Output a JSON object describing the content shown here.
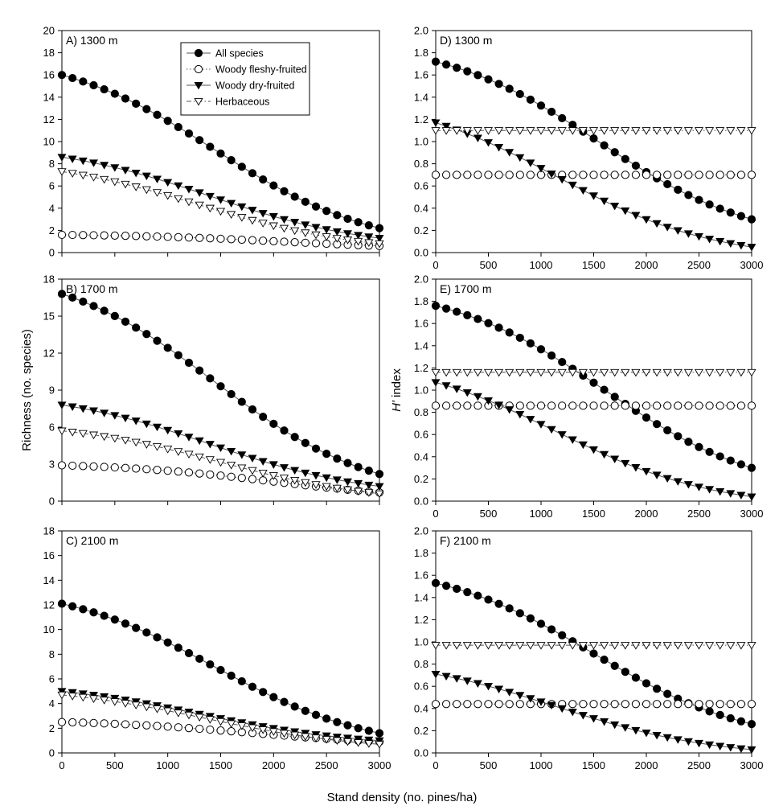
{
  "figure": {
    "ylabel_left": "Richness (no. species)",
    "ylabel_right_italic": "H'",
    "ylabel_right_rest": " index",
    "xlabel": "Stand density (no. pines/ha)"
  },
  "colors": {
    "ink": "#000000",
    "line": "#555555",
    "hollow": "#ffffff"
  },
  "chart_data": [
    {
      "id": "A",
      "type": "line",
      "label": "A) 1300 m",
      "metric": "Richness (no. species)",
      "ylim": [
        0,
        20
      ],
      "yticks": [
        0,
        2,
        4,
        6,
        8,
        10,
        12,
        14,
        16,
        18,
        20
      ],
      "xlim": [
        0,
        3000
      ],
      "xticks": [
        0,
        500,
        1000,
        1500,
        2000,
        2500,
        3000
      ],
      "xticklabels": false,
      "legend": true,
      "legend_position": "top-right",
      "series": [
        {
          "name": "All species",
          "marker": "circle-filled",
          "dash": "solid",
          "start": 16.0,
          "end": 2.2,
          "mid": 1450,
          "k": 1.0
        },
        {
          "name": "Woody fleshy-fruited",
          "marker": "circle-open",
          "dash": "dotted",
          "start": 1.6,
          "end": 0.6,
          "mid": 2100,
          "k": 1.0
        },
        {
          "name": "Woody dry-fruited",
          "marker": "triangle-filled",
          "dash": "solid",
          "start": 8.6,
          "end": 1.3,
          "mid": 1400,
          "k": 1.0
        },
        {
          "name": "Herbaceous",
          "marker": "triangle-open",
          "dash": "dashdot",
          "start": 7.3,
          "end": 0.8,
          "mid": 1300,
          "k": 1.0
        }
      ]
    },
    {
      "id": "B",
      "type": "line",
      "label": "B) 1700 m",
      "metric": "Richness (no. species)",
      "ylim": [
        0,
        18
      ],
      "yticks": [
        0,
        3,
        6,
        9,
        12,
        15,
        18
      ],
      "xlim": [
        0,
        3000
      ],
      "xticks": [
        0,
        500,
        1000,
        1500,
        2000,
        2500,
        3000
      ],
      "xticklabels": false,
      "legend": false,
      "series": [
        {
          "name": "All species",
          "marker": "circle-filled",
          "dash": "solid",
          "start": 16.8,
          "end": 2.2,
          "mid": 1450,
          "k": 1.0
        },
        {
          "name": "Woody fleshy-fruited",
          "marker": "circle-open",
          "dash": "dotted",
          "start": 2.9,
          "end": 0.7,
          "mid": 2000,
          "k": 1.0
        },
        {
          "name": "Woody dry-fruited",
          "marker": "triangle-filled",
          "dash": "solid",
          "start": 7.8,
          "end": 1.2,
          "mid": 1400,
          "k": 1.0
        },
        {
          "name": "Herbaceous",
          "marker": "triangle-open",
          "dash": "dashdot",
          "start": 5.7,
          "end": 0.6,
          "mid": 1500,
          "k": 1.0
        }
      ]
    },
    {
      "id": "C",
      "type": "line",
      "label": "C) 2100 m",
      "metric": "Richness (no. species)",
      "ylim": [
        0,
        18
      ],
      "yticks": [
        0,
        2,
        4,
        6,
        8,
        10,
        12,
        14,
        16,
        18
      ],
      "xlim": [
        0,
        3000
      ],
      "xticks": [
        0,
        500,
        1000,
        1500,
        2000,
        2500,
        3000
      ],
      "xticklabels": true,
      "legend": false,
      "series": [
        {
          "name": "All species",
          "marker": "circle-filled",
          "dash": "solid",
          "start": 12.1,
          "end": 1.6,
          "mid": 1450,
          "k": 1.0
        },
        {
          "name": "Woody fleshy-fruited",
          "marker": "circle-open",
          "dash": "dotted",
          "start": 2.5,
          "end": 0.9,
          "mid": 1800,
          "k": 1.0
        },
        {
          "name": "Woody dry-fruited",
          "marker": "triangle-filled",
          "dash": "solid",
          "start": 5.0,
          "end": 1.0,
          "mid": 1300,
          "k": 1.0
        },
        {
          "name": "Herbaceous",
          "marker": "triangle-open",
          "dash": "dashdot",
          "start": 4.7,
          "end": 0.7,
          "mid": 1350,
          "k": 1.0
        }
      ]
    },
    {
      "id": "D",
      "type": "line",
      "label": "D) 1300 m",
      "metric": "H' index",
      "ylim": [
        0,
        2.0
      ],
      "yticks": [
        0.0,
        0.2,
        0.4,
        0.6,
        0.8,
        1.0,
        1.2,
        1.4,
        1.6,
        1.8,
        2.0
      ],
      "xlim": [
        0,
        3000
      ],
      "xticks": [
        0,
        500,
        1000,
        1500,
        2000,
        2500,
        3000
      ],
      "xticklabels": true,
      "legend": false,
      "series": [
        {
          "name": "All species",
          "marker": "circle-filled",
          "dash": "solid",
          "start": 1.72,
          "end": 0.3,
          "mid": 1550,
          "k": 1.0
        },
        {
          "name": "Woody fleshy-fruited",
          "marker": "circle-open",
          "dash": "dotted",
          "start": 0.7,
          "end": 0.7,
          "mid": 1500,
          "k": 1.0
        },
        {
          "name": "Woody dry-fruited",
          "marker": "triangle-filled",
          "dash": "solid",
          "start": 1.17,
          "end": 0.05,
          "mid": 1150,
          "k": 1.0
        },
        {
          "name": "Herbaceous",
          "marker": "triangle-open",
          "dash": "dashdot",
          "start": 1.1,
          "end": 1.1,
          "mid": 1500,
          "k": 1.0
        }
      ]
    },
    {
      "id": "E",
      "type": "line",
      "label": "E) 1700 m",
      "metric": "H' index",
      "ylim": [
        0,
        2.0
      ],
      "yticks": [
        0.0,
        0.2,
        0.4,
        0.6,
        0.8,
        1.0,
        1.2,
        1.4,
        1.6,
        1.8,
        2.0
      ],
      "xlim": [
        0,
        3000
      ],
      "xticks": [
        0,
        500,
        1000,
        1500,
        2000,
        2500,
        3000
      ],
      "xticklabels": true,
      "legend": false,
      "series": [
        {
          "name": "All species",
          "marker": "circle-filled",
          "dash": "solid",
          "start": 1.76,
          "end": 0.3,
          "mid": 1600,
          "k": 1.0
        },
        {
          "name": "Woody fleshy-fruited",
          "marker": "circle-open",
          "dash": "dotted",
          "start": 0.86,
          "end": 0.86,
          "mid": 1500,
          "k": 1.0
        },
        {
          "name": "Woody dry-fruited",
          "marker": "triangle-filled",
          "dash": "solid",
          "start": 1.07,
          "end": 0.04,
          "mid": 1150,
          "k": 1.0
        },
        {
          "name": "Herbaceous",
          "marker": "triangle-open",
          "dash": "dashdot",
          "start": 1.16,
          "end": 1.16,
          "mid": 1500,
          "k": 1.0
        }
      ]
    },
    {
      "id": "F",
      "type": "line",
      "label": "F) 2100 m",
      "metric": "H' index",
      "ylim": [
        0,
        2.0
      ],
      "yticks": [
        0.0,
        0.2,
        0.4,
        0.6,
        0.8,
        1.0,
        1.2,
        1.4,
        1.6,
        1.8,
        2.0
      ],
      "xlim": [
        0,
        3000
      ],
      "xticks": [
        0,
        500,
        1000,
        1500,
        2000,
        2500,
        3000
      ],
      "xticklabels": true,
      "legend": false,
      "series": [
        {
          "name": "All species",
          "marker": "circle-filled",
          "dash": "solid",
          "start": 1.53,
          "end": 0.26,
          "mid": 1500,
          "k": 1.0
        },
        {
          "name": "Woody fleshy-fruited",
          "marker": "circle-open",
          "dash": "dotted",
          "start": 0.44,
          "end": 0.44,
          "mid": 1500,
          "k": 1.0
        },
        {
          "name": "Woody dry-fruited",
          "marker": "triangle-filled",
          "dash": "solid",
          "start": 0.71,
          "end": 0.03,
          "mid": 1150,
          "k": 1.0
        },
        {
          "name": "Herbaceous",
          "marker": "triangle-open",
          "dash": "dashdot",
          "start": 0.97,
          "end": 0.97,
          "mid": 1500,
          "k": 1.0
        }
      ]
    }
  ]
}
